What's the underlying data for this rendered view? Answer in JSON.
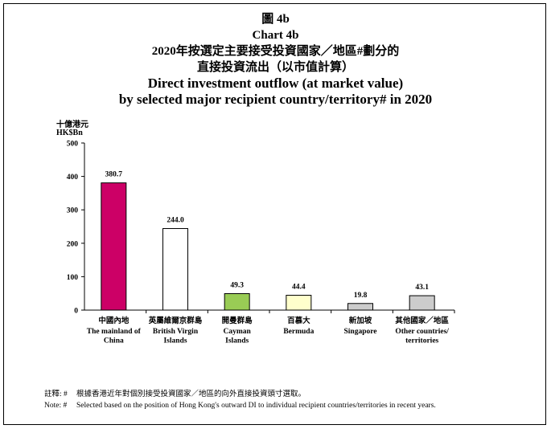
{
  "title": {
    "line1": "圖 4b",
    "line2": "Chart 4b",
    "line3_zh": "2020年按選定主要接受投資國家／地區#劃分的",
    "line4_zh": "直接投資流出（以市值計算）",
    "line5_en": "Direct investment outflow (at market value)",
    "line6_en": "by selected major recipient country/territory# in 2020"
  },
  "unit": {
    "zh": "十億港元",
    "en": "HK$Bn"
  },
  "notes": {
    "zh_label": "註釋: #",
    "zh_text": "根據香港近年對個別接受投資國家／地區的向外直接投資頭寸選取。",
    "en_label": "Note: #",
    "en_text": "Selected based on the position of Hong Kong's outward DI to individual recipient countries/territories in recent years."
  },
  "chart_data": {
    "type": "bar",
    "categories": [
      {
        "zh": "中國內地",
        "en": [
          "The mainland of",
          "China"
        ]
      },
      {
        "zh": "英屬維爾京群島",
        "en": [
          "British Virgin",
          "Islands"
        ]
      },
      {
        "zh": "開曼群島",
        "en": [
          "Cayman",
          "Islands"
        ]
      },
      {
        "zh": "百慕大",
        "en": [
          "Bermuda"
        ]
      },
      {
        "zh": "新加坡",
        "en": [
          "Singapore"
        ]
      },
      {
        "zh": "其他國家／地區",
        "en": [
          "Other countries/",
          "territories"
        ]
      }
    ],
    "values": [
      380.7,
      244.0,
      49.3,
      44.4,
      19.8,
      43.1
    ],
    "value_labels": [
      "380.7",
      "244.0",
      "49.3",
      "44.4",
      "19.8",
      "43.1"
    ],
    "colors": [
      "#cc0066",
      "#ffffff",
      "#99cc55",
      "#ffffcc",
      "#cccccc",
      "#cccccc"
    ],
    "ylim": [
      0,
      500
    ],
    "yticks": [
      "0",
      "100",
      "200",
      "300",
      "400",
      "500"
    ],
    "grid": false
  }
}
